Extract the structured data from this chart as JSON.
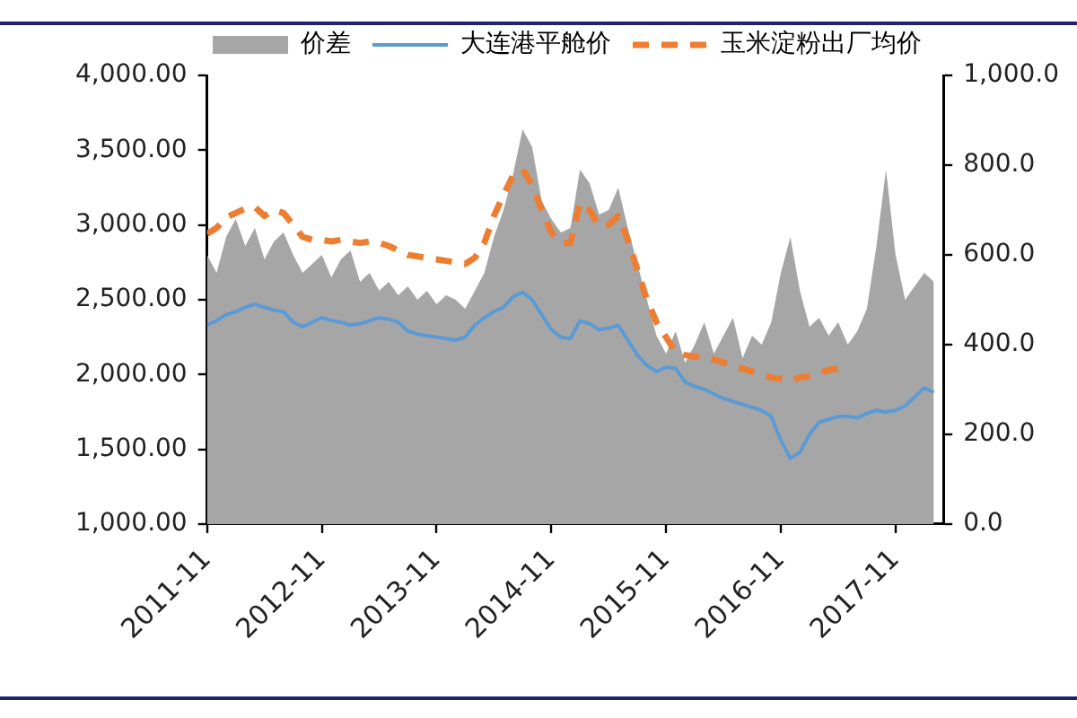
{
  "chart_data": {
    "type": "line",
    "x": [
      "2011-11",
      "2011-12",
      "2012-01",
      "2012-02",
      "2012-03",
      "2012-04",
      "2012-05",
      "2012-06",
      "2012-07",
      "2012-08",
      "2012-09",
      "2012-10",
      "2012-11",
      "2012-12",
      "2013-01",
      "2013-02",
      "2013-03",
      "2013-04",
      "2013-05",
      "2013-06",
      "2013-07",
      "2013-08",
      "2013-09",
      "2013-10",
      "2013-11",
      "2013-12",
      "2014-01",
      "2014-02",
      "2014-03",
      "2014-04",
      "2014-05",
      "2014-06",
      "2014-07",
      "2014-08",
      "2014-09",
      "2014-10",
      "2014-11",
      "2014-12",
      "2015-01",
      "2015-02",
      "2015-03",
      "2015-04",
      "2015-05",
      "2015-06",
      "2015-07",
      "2015-08",
      "2015-09",
      "2015-10",
      "2015-11",
      "2015-12",
      "2016-01",
      "2016-02",
      "2016-03",
      "2016-04",
      "2016-05",
      "2016-06",
      "2016-07",
      "2016-08",
      "2016-09",
      "2016-10",
      "2016-11",
      "2016-12",
      "2017-01",
      "2017-02",
      "2017-03",
      "2017-04",
      "2017-05",
      "2017-06",
      "2017-07",
      "2017-08",
      "2017-09",
      "2017-10",
      "2017-11",
      "2017-12",
      "2018-01",
      "2018-02",
      "2018-03"
    ],
    "series": [
      {
        "name": "价差",
        "type": "area",
        "axis": "y2",
        "color": "#a6a6a6",
        "values": [
          600,
          560,
          640,
          680,
          620,
          660,
          590,
          630,
          650,
          600,
          560,
          580,
          600,
          550,
          590,
          610,
          540,
          560,
          520,
          540,
          510,
          530,
          500,
          520,
          490,
          510,
          500,
          480,
          520,
          560,
          640,
          700,
          780,
          880,
          840,
          720,
          680,
          650,
          660,
          790,
          760,
          690,
          700,
          750,
          660,
          580,
          500,
          420,
          380,
          430,
          360,
          400,
          450,
          380,
          420,
          460,
          370,
          420,
          400,
          450,
          560,
          640,
          520,
          440,
          460,
          420,
          450,
          400,
          430,
          480,
          620,
          790,
          600,
          500,
          530,
          560,
          540
        ]
      },
      {
        "name": "大连港平舱价",
        "color": "#5b9bd5",
        "values": [
          2330,
          2360,
          2400,
          2420,
          2450,
          2470,
          2450,
          2430,
          2420,
          2350,
          2320,
          2350,
          2380,
          2360,
          2350,
          2330,
          2340,
          2360,
          2380,
          2370,
          2350,
          2290,
          2270,
          2260,
          2250,
          2240,
          2230,
          2250,
          2330,
          2380,
          2420,
          2450,
          2520,
          2550,
          2500,
          2400,
          2300,
          2250,
          2240,
          2360,
          2340,
          2300,
          2310,
          2330,
          2230,
          2130,
          2060,
          2020,
          2050,
          2040,
          1950,
          1920,
          1900,
          1870,
          1840,
          1820,
          1800,
          1780,
          1760,
          1720,
          1560,
          1440,
          1480,
          1600,
          1680,
          1700,
          1720,
          1720,
          1710,
          1740,
          1760,
          1750,
          1760,
          1790,
          1850,
          1910,
          1880
        ]
      },
      {
        "name": "玉米淀粉出厂均价",
        "color": "#ed7d31",
        "line_style": "dashed",
        "values": [
          2940,
          2980,
          3050,
          3080,
          3110,
          3120,
          3060,
          3100,
          3080,
          3000,
          2920,
          2900,
          2900,
          2890,
          2900,
          2890,
          2880,
          2890,
          2880,
          2860,
          2830,
          2800,
          2790,
          2780,
          2770,
          2760,
          2750,
          2740,
          2780,
          2880,
          3060,
          3200,
          3330,
          3370,
          3270,
          3100,
          2950,
          2880,
          2880,
          3150,
          3100,
          2990,
          3000,
          3060,
          2900,
          2700,
          2500,
          2350,
          2250,
          2150,
          2130,
          2120,
          2120,
          2100,
          2080,
          2060,
          2040,
          2020,
          2000,
          1980,
          1970,
          1960,
          1980,
          1990,
          2010,
          2030,
          2040,
          null,
          null,
          null,
          null,
          null,
          null,
          null,
          null,
          null,
          null
        ]
      }
    ],
    "xlim": [
      "2011-11",
      "2018-04"
    ],
    "xticks": [
      "2011-11",
      "2012-11",
      "2013-11",
      "2014-11",
      "2015-11",
      "2016-11",
      "2017-11"
    ],
    "ylim": [
      1000,
      4000
    ],
    "yticks": [
      {
        "value": 1000,
        "label": "1,000.00"
      },
      {
        "value": 1500,
        "label": "1,500.00"
      },
      {
        "value": 2000,
        "label": "2,000.00"
      },
      {
        "value": 2500,
        "label": "2,500.00"
      },
      {
        "value": 3000,
        "label": "3,000.00"
      },
      {
        "value": 3500,
        "label": "3,500.00"
      },
      {
        "value": 4000,
        "label": "4,000.00"
      }
    ],
    "y2lim": [
      0,
      1000
    ],
    "y2ticks": [
      {
        "value": 0,
        "label": "0.0"
      },
      {
        "value": 200,
        "label": "200.0"
      },
      {
        "value": 400,
        "label": "400.0"
      },
      {
        "value": 600,
        "label": "600.0"
      },
      {
        "value": 800,
        "label": "800.0"
      },
      {
        "value": 1000,
        "label": "1,000.0"
      }
    ],
    "grid": false,
    "legend": "top",
    "marker": "none"
  }
}
